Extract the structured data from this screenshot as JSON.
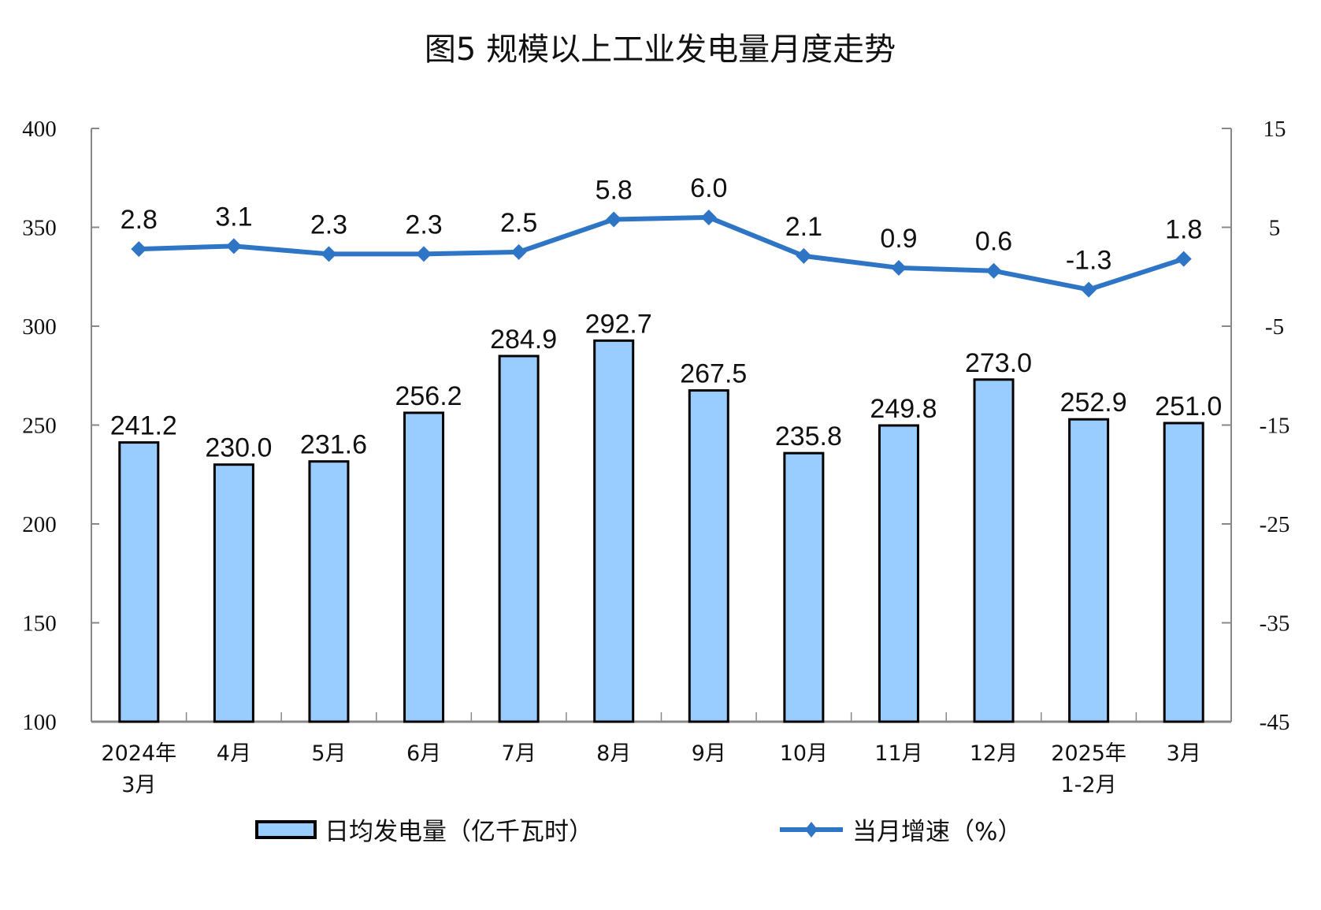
{
  "chart_data": {
    "type": "bar+line",
    "title": "图5  规模以上工业发电量月度走势",
    "categories": [
      [
        "2024年",
        "3月"
      ],
      [
        "4月"
      ],
      [
        "5月"
      ],
      [
        "6月"
      ],
      [
        "7月"
      ],
      [
        "8月"
      ],
      [
        "9月"
      ],
      [
        "10月"
      ],
      [
        "11月"
      ],
      [
        "12月"
      ],
      [
        "2025年",
        "1-2月"
      ],
      [
        "3月"
      ]
    ],
    "series": [
      {
        "name": "日均发电量（亿千瓦时）",
        "type": "bar",
        "axis": "left",
        "color": "#99CCFF",
        "edge": "#000000",
        "values": [
          241.2,
          230.0,
          231.6,
          256.2,
          284.9,
          292.7,
          267.5,
          235.8,
          249.8,
          273.0,
          252.9,
          251.0
        ],
        "labels": [
          "241.2",
          "230.0",
          "231.6",
          "256.2",
          "284.9",
          "292.7",
          "267.5",
          "235.8",
          "249.8",
          "273.0",
          "252.9",
          "251.0"
        ]
      },
      {
        "name": "当月增速（%）",
        "type": "line",
        "axis": "right",
        "color": "#2E75C6",
        "marker": "diamond",
        "values": [
          2.8,
          3.1,
          2.3,
          2.3,
          2.5,
          5.8,
          6.0,
          2.1,
          0.9,
          0.6,
          -1.3,
          1.8
        ],
        "labels": [
          "2.8",
          "3.1",
          "2.3",
          "2.3",
          "2.5",
          "5.8",
          "6.0",
          "2.1",
          "0.9",
          "0.6",
          "-1.3",
          "1.8"
        ]
      }
    ],
    "y_left": {
      "range": [
        100,
        400
      ],
      "ticks": [
        "100",
        "150",
        "200",
        "250",
        "300",
        "350",
        "400"
      ]
    },
    "y_right": {
      "range": [
        -45,
        15
      ],
      "ticks": [
        "-45",
        "-35",
        "-25",
        "-15",
        "-5",
        "5",
        "15"
      ]
    },
    "grid": false,
    "legend_position": "bottom"
  }
}
